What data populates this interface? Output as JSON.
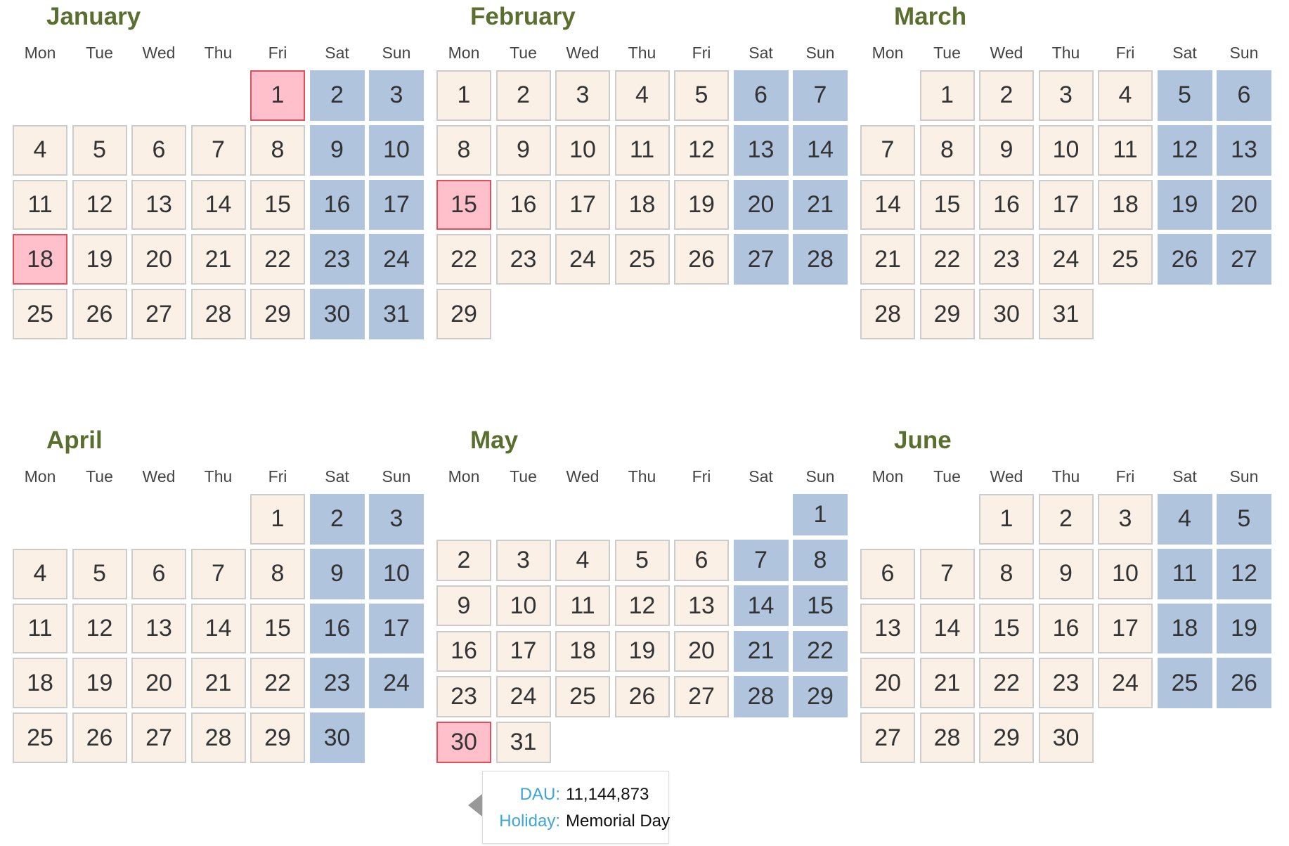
{
  "weekday_labels": [
    "Mon",
    "Tue",
    "Wed",
    "Thu",
    "Fri",
    "Sat",
    "Sun"
  ],
  "colors": {
    "title": "#5a6f2f",
    "weekday_cell": "#faf0e6",
    "weekend_cell": "#b0c4de",
    "holiday_cell": "#ffc0cb",
    "holiday_border": "#e0505a",
    "tooltip_label": "#3ea5d8"
  },
  "months": [
    {
      "name": "January",
      "first_weekday": 4,
      "days": 31,
      "holidays": [
        1,
        18
      ]
    },
    {
      "name": "February",
      "first_weekday": 0,
      "days": 29,
      "holidays": [
        15
      ]
    },
    {
      "name": "March",
      "first_weekday": 1,
      "days": 31,
      "holidays": []
    },
    {
      "name": "April",
      "first_weekday": 4,
      "days": 30,
      "holidays": []
    },
    {
      "name": "May",
      "first_weekday": 6,
      "days": 31,
      "holidays": [
        30
      ]
    },
    {
      "name": "June",
      "first_weekday": 2,
      "days": 30,
      "holidays": []
    }
  ],
  "tooltip": {
    "dau_label": "DAU:",
    "dau_value": "11,144,873",
    "holiday_label": "Holiday:",
    "holiday_value": "Memorial Day"
  }
}
